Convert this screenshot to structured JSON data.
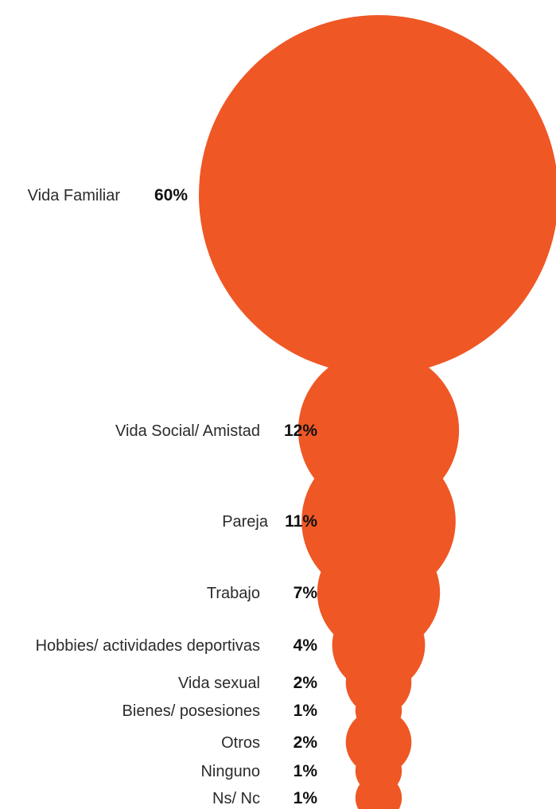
{
  "chart_data": {
    "type": "bubble",
    "title": "",
    "color": "#EF5725",
    "categories": [
      "Vida Familiar",
      "Vida Social/ Amistad",
      "Pareja",
      "Trabajo",
      "Hobbies/ actividades deportivas",
      "Vida sexual",
      "Bienes/ posesiones",
      "Otros",
      "Ninguno",
      "Ns/ Nc"
    ],
    "values": [
      60,
      12,
      11,
      7,
      4,
      2,
      1,
      2,
      1,
      1
    ],
    "value_labels": [
      "60%",
      "12%",
      "11%",
      "7%",
      "4%",
      "2%",
      "1%",
      "2%",
      "1%",
      "1%"
    ]
  }
}
